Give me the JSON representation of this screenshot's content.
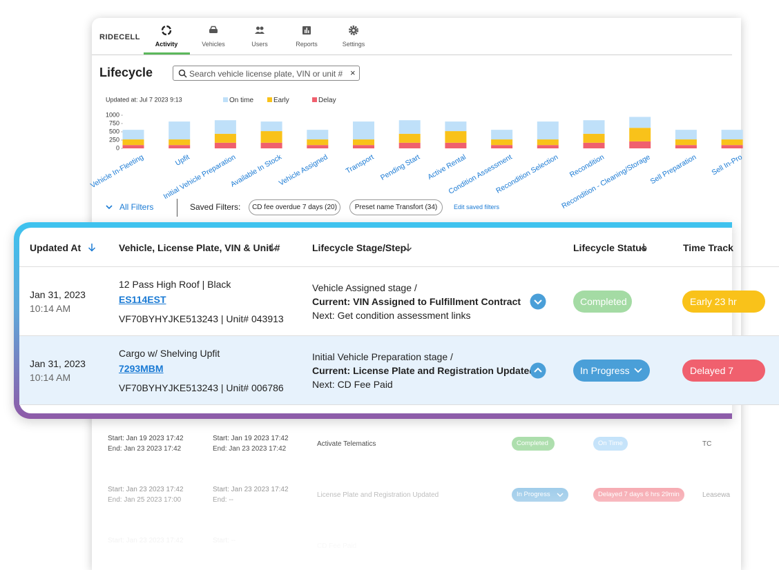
{
  "nav": {
    "logo": "RIDECELL",
    "tabs": [
      "Activity",
      "Vehicles",
      "Users",
      "Reports",
      "Settings"
    ],
    "active_tab": 0
  },
  "header": {
    "title": "Lifecycle",
    "search_placeholder": "Search vehicle license plate, VIN or unit #",
    "clear": "×"
  },
  "chart_data": {
    "type": "stacked_bar",
    "subtitle": "Updated at: Jul 7 2023 9:13",
    "categories": [
      "Vehicle In-Fleeting",
      "Upfit",
      "Initial Vehicle Preparation",
      "Available In Stock",
      "Vehicle Assigned",
      "Transport",
      "Pending Start",
      "Active Rental",
      "Condition Assessment",
      "Recondition Selection",
      "Recondition",
      "Recondition - Cleaning/Storage",
      "Sell Preparation",
      "Sell In-Pro"
    ],
    "series": [
      {
        "name": "On time",
        "color": "#bfe0f9",
        "values": [
          290,
          540,
          410,
          290,
          290,
          540,
          410,
          290,
          290,
          540,
          410,
          330,
          290,
          290
        ]
      },
      {
        "name": "Early",
        "color": "#f9c21a",
        "values": [
          170,
          170,
          270,
          350,
          170,
          170,
          270,
          350,
          170,
          170,
          270,
          410,
          170,
          170
        ]
      },
      {
        "name": "Delay",
        "color": "#f0606e",
        "values": [
          100,
          100,
          170,
          170,
          100,
          100,
          170,
          170,
          100,
          100,
          170,
          210,
          100,
          100
        ]
      }
    ],
    "ylim": [
      0,
      1000
    ],
    "yticks": [
      0,
      250,
      500,
      750,
      1000
    ],
    "grid": false
  },
  "filters": {
    "all": "All Filters",
    "saved_label": "Saved Filters:",
    "chips": [
      "CD fee overdue 7 days (20)",
      "Preset name Transfort (34)"
    ],
    "edit": "Edit saved filters"
  },
  "table": {
    "columns": [
      "Updated At",
      "Vehicle, License Plate, VIN & Unit #",
      "Lifecycle Stage/Step",
      "Lifecycle Status",
      "Time Track"
    ],
    "rows": [
      {
        "date": "Jan 31, 2023",
        "time": "10:14 AM",
        "vehicle": "12 Pass High Roof | Black",
        "plate": "ES114EST",
        "vin": "VF70BYHYJKE513243 | Unit# 043913",
        "stage": "Vehicle Assigned stage /",
        "current": "Current: VIN Assigned to Fulfillment Contract",
        "next": "Next: Get condition assessment links",
        "status": "Completed",
        "status_color": "#a4dba4",
        "time_track": "Early 23 hr",
        "time_color": "#f9c21a",
        "expanded": false
      },
      {
        "date": "Jan 31, 2023",
        "time": "10:14 AM",
        "vehicle": "Cargo w/ Shelving Upfit",
        "plate": "7293MBM",
        "vin": "VF70BYHYJKE513243 | Unit# 006786",
        "stage": "Initial Vehicle Preparation stage /",
        "current": "Current: License Plate and Registration Updated",
        "next": "Next: CD Fee Paid",
        "status": "In Progress",
        "status_color": "#4a9fd8",
        "time_track": "Delayed 7",
        "time_color": "#f0606e",
        "expanded": true
      }
    ]
  },
  "sub_table": {
    "rows": [
      {
        "planned": [
          "Start: Jan 19 2023 17:42",
          "End: Jan 23 2023 17:42"
        ],
        "actual": [
          "Start: Jan 19 2023 17:42",
          "End: Jan 23 2023 17:42"
        ],
        "step": "Activate Telematics",
        "status": "Completed",
        "status_color": "#a4dba4",
        "time_track": "On Time",
        "time_color": "#bfe0f9",
        "owner": "TC"
      },
      {
        "planned": [
          "Start: Jan 23 2023 17:42",
          "End: Jan 25 2023 17:00"
        ],
        "actual": [
          "Start: Jan 23 2023 17:42",
          "End: --"
        ],
        "step": "License Plate and Registration Updated",
        "status": "In Progress",
        "status_color": "#4a9fd8",
        "time_track": "Delayed 7 days 6 hrs 29min",
        "time_color": "#f0606e",
        "owner": "Leasewa"
      },
      {
        "planned": [
          "Start: Jan 23 2023 17:42"
        ],
        "actual": [
          "Start: --"
        ],
        "step": "CD Fee Paid"
      }
    ]
  }
}
